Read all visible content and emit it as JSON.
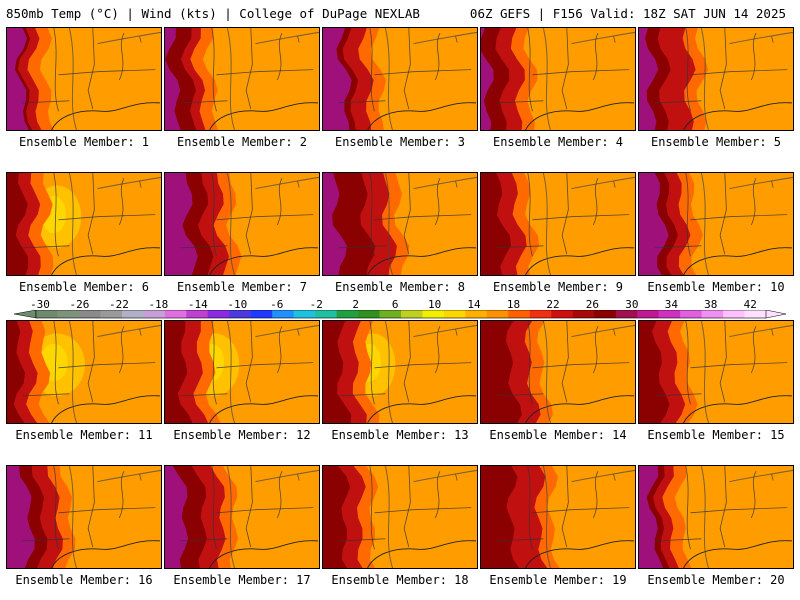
{
  "header": {
    "left_title": "850mb Temp (°C) | Wind (kts) | College of DuPage NEXLAB",
    "right_title": "06Z GEFS | F156 Valid: 18Z SAT JUN 14 2025"
  },
  "panel_label_prefix": "Ensemble Member:",
  "members": [
    {
      "label": "Ensemble Member: 1"
    },
    {
      "label": "Ensemble Member: 2"
    },
    {
      "label": "Ensemble Member: 3"
    },
    {
      "label": "Ensemble Member: 4"
    },
    {
      "label": "Ensemble Member: 5"
    },
    {
      "label": "Ensemble Member: 6"
    },
    {
      "label": "Ensemble Member: 7"
    },
    {
      "label": "Ensemble Member: 8"
    },
    {
      "label": "Ensemble Member: 9"
    },
    {
      "label": "Ensemble Member: 10"
    },
    {
      "label": "Ensemble Member: 11"
    },
    {
      "label": "Ensemble Member: 12"
    },
    {
      "label": "Ensemble Member: 13"
    },
    {
      "label": "Ensemble Member: 14"
    },
    {
      "label": "Ensemble Member: 15"
    },
    {
      "label": "Ensemble Member: 16"
    },
    {
      "label": "Ensemble Member: 17"
    },
    {
      "label": "Ensemble Member: 18"
    },
    {
      "label": "Ensemble Member: 19"
    },
    {
      "label": "Ensemble Member: 20"
    }
  ],
  "colorbar": {
    "tick_labels": [
      "-30",
      "-26",
      "-22",
      "-18",
      "-14",
      "-10",
      "-6",
      "-2",
      "2",
      "6",
      "10",
      "14",
      "18",
      "22",
      "26",
      "30",
      "34",
      "38",
      "42"
    ],
    "colors": [
      "#6f8a6f",
      "#7d937d",
      "#8a8a8a",
      "#9a9a9a",
      "#b0b0c8",
      "#c8a0d8",
      "#e070e0",
      "#c040d0",
      "#8a2be2",
      "#4a3adf",
      "#1e3cff",
      "#2090ff",
      "#20c0e0",
      "#20c0a0",
      "#20a040",
      "#309020",
      "#70b020",
      "#c0d020",
      "#f0f000",
      "#ffd700",
      "#ffb000",
      "#ff9000",
      "#ff6000",
      "#f03010",
      "#d01010",
      "#a80808",
      "#8b0000",
      "#a01050",
      "#c01890",
      "#d030c0",
      "#e060e0",
      "#f090f0",
      "#ffc0ff",
      "#ffe0ff"
    ],
    "arrow_left_color": "#6f8a6f",
    "arrow_right_color": "#ffe0ff"
  },
  "field_colors": {
    "magenta": "#a0107a",
    "dark_red": "#8b0000",
    "red": "#c01010",
    "red_orange": "#e03c10",
    "orange_red": "#ff6a00",
    "orange": "#ff9d00",
    "light_orange": "#ffb000",
    "yellow_orange": "#ffc800",
    "yellow": "#ffe000"
  },
  "member_fields": [
    {
      "west": 2,
      "mag": 0.08,
      "dk": 0.1,
      "rd": 0.16,
      "warm": 0.0
    },
    {
      "west": 2,
      "mag": 0.04,
      "dk": 0.14,
      "rd": 0.2,
      "warm": 0.0
    },
    {
      "west": 2,
      "mag": 0.12,
      "dk": 0.16,
      "rd": 0.26,
      "warm": 0.0
    },
    {
      "west": 2,
      "mag": 0.02,
      "dk": 0.12,
      "rd": 0.22,
      "warm": 0.0
    },
    {
      "west": 2,
      "mag": 0.06,
      "dk": 0.14,
      "rd": 0.3,
      "warm": 0.0
    },
    {
      "west": 2,
      "mag": 0.0,
      "dk": 0.08,
      "rd": 0.16,
      "warm": 0.3
    },
    {
      "west": 2,
      "mag": 0.14,
      "dk": 0.24,
      "rd": 0.34,
      "warm": 0.0
    },
    {
      "west": 2,
      "mag": 0.08,
      "dk": 0.26,
      "rd": 0.4,
      "warm": 0.2
    },
    {
      "west": 2,
      "mag": 0.0,
      "dk": 0.12,
      "rd": 0.22,
      "warm": 0.0
    },
    {
      "west": 2,
      "mag": 0.12,
      "dk": 0.18,
      "rd": 0.26,
      "warm": 0.0
    },
    {
      "west": 2,
      "mag": 0.0,
      "dk": 0.06,
      "rd": 0.14,
      "warm": 0.5
    },
    {
      "west": 2,
      "mag": 0.0,
      "dk": 0.1,
      "rd": 0.2,
      "warm": 0.3
    },
    {
      "west": 2,
      "mag": 0.0,
      "dk": 0.1,
      "rd": 0.2,
      "warm": 0.2
    },
    {
      "west": 2,
      "mag": 0.0,
      "dk": 0.18,
      "rd": 0.3,
      "warm": 0.0
    },
    {
      "west": 2,
      "mag": 0.0,
      "dk": 0.12,
      "rd": 0.22,
      "warm": 0.0
    },
    {
      "west": 2,
      "mag": 0.12,
      "dk": 0.2,
      "rd": 0.3,
      "warm": 0.0
    },
    {
      "west": 2,
      "mag": 0.1,
      "dk": 0.22,
      "rd": 0.34,
      "warm": 0.0
    },
    {
      "west": 2,
      "mag": 0.0,
      "dk": 0.12,
      "rd": 0.22,
      "warm": 0.0
    },
    {
      "west": 2,
      "mag": 0.0,
      "dk": 0.18,
      "rd": 0.36,
      "warm": 0.0
    },
    {
      "west": 2,
      "mag": 0.08,
      "dk": 0.12,
      "rd": 0.18,
      "warm": 0.0
    }
  ]
}
